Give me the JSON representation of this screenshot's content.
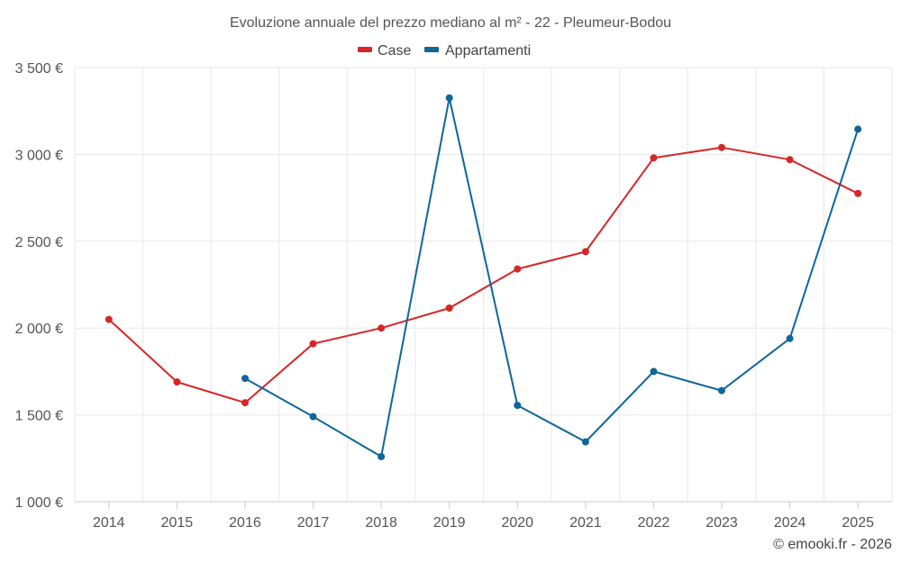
{
  "chart_data": {
    "type": "line",
    "title": "Evoluzione annuale del prezzo mediano al m² - 22 - Pleumeur-Bodou",
    "categories": [
      "2014",
      "2015",
      "2016",
      "2017",
      "2018",
      "2019",
      "2020",
      "2021",
      "2022",
      "2023",
      "2024",
      "2025"
    ],
    "y_ticks": [
      {
        "value": 1000,
        "label": "1 000 €"
      },
      {
        "value": 1500,
        "label": "1 500 €"
      },
      {
        "value": 2000,
        "label": "2 000 €"
      },
      {
        "value": 2500,
        "label": "2 500 €"
      },
      {
        "value": 3000,
        "label": "3 000 €"
      },
      {
        "value": 3500,
        "label": "3 500 €"
      }
    ],
    "ylim": [
      1000,
      3500
    ],
    "series": [
      {
        "name": "Case",
        "color": "#d62728",
        "values": [
          2050,
          1690,
          1570,
          1910,
          2000,
          2115,
          2340,
          2440,
          2980,
          3040,
          2970,
          2775
        ]
      },
      {
        "name": "Appartamenti",
        "color": "#0f6699",
        "values": [
          null,
          null,
          1710,
          1490,
          1260,
          3325,
          1555,
          1345,
          1750,
          1640,
          1940,
          3145
        ]
      }
    ],
    "legend": "top-center",
    "grid": true,
    "credit": "© emooki.fr - 2026"
  }
}
